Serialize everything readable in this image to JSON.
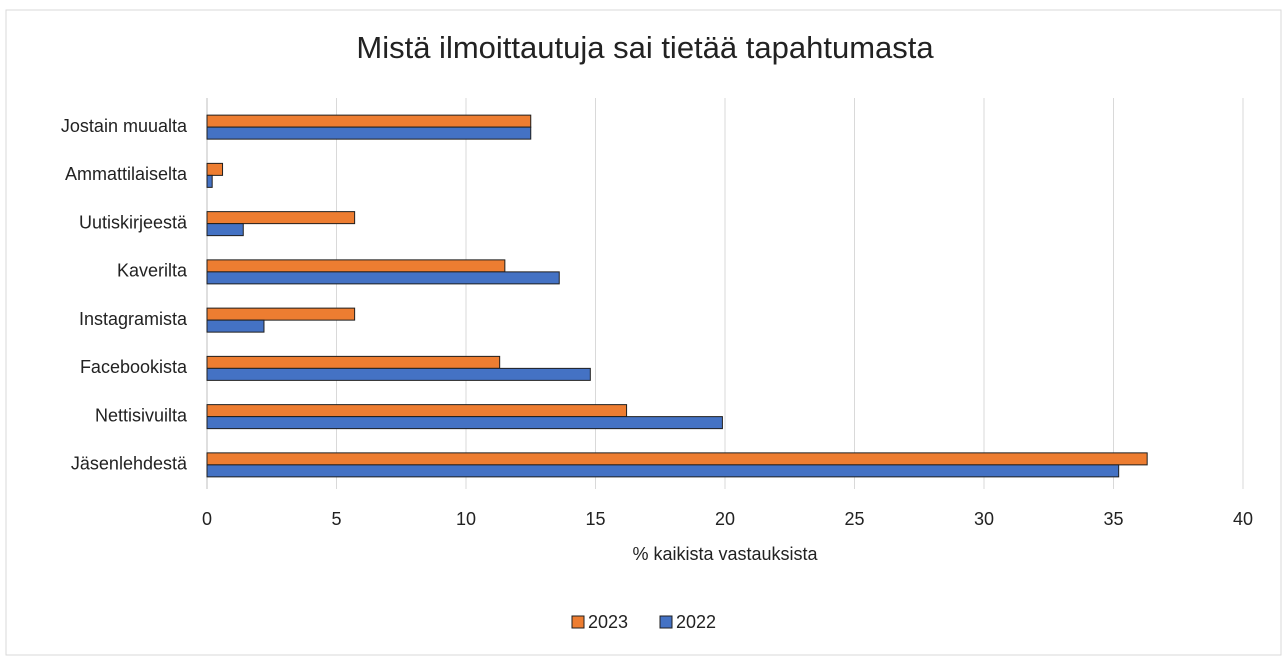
{
  "chart_data": {
    "type": "bar",
    "orientation": "horizontal",
    "title": "Mistä ilmoittautuja sai tietää tapahtumasta",
    "xlabel": "% kaikista vastauksista",
    "categories": [
      "Jostain muualta",
      "Ammattilaiselta",
      "Uutiskirjeestä",
      "Kaverilta",
      "Instagramista",
      "Facebookista",
      "Nettisivuilta",
      "Jäsenlehdestä"
    ],
    "series": [
      {
        "name": "2023",
        "color": "#ed7d31",
        "values": [
          12.5,
          0.6,
          5.7,
          11.5,
          5.7,
          11.3,
          16.2,
          36.3
        ]
      },
      {
        "name": "2022",
        "color": "#4472c4",
        "values": [
          12.5,
          0.2,
          1.4,
          13.6,
          2.2,
          14.8,
          19.9,
          35.2
        ]
      }
    ],
    "xlim": [
      0,
      40
    ],
    "xticks": [
      0,
      5,
      10,
      15,
      20,
      25,
      30,
      35,
      40
    ],
    "grid": true,
    "legend": "bottom"
  }
}
